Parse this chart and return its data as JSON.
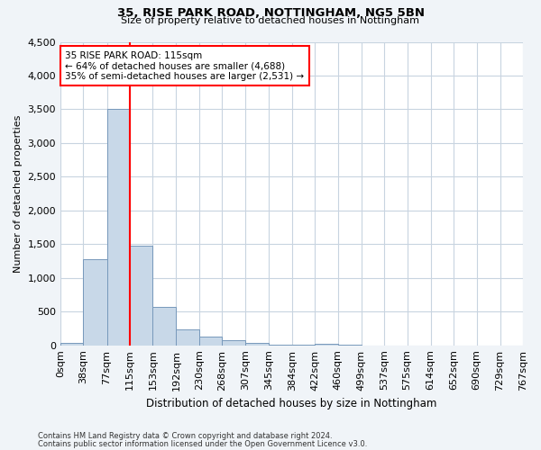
{
  "title": "35, RISE PARK ROAD, NOTTINGHAM, NG5 5BN",
  "subtitle": "Size of property relative to detached houses in Nottingham",
  "xlabel": "Distribution of detached houses by size in Nottingham",
  "ylabel": "Number of detached properties",
  "bin_edges": [
    0,
    38,
    77,
    115,
    153,
    192,
    230,
    268,
    307,
    345,
    384,
    422,
    460,
    499,
    537,
    575,
    614,
    652,
    690,
    729,
    767
  ],
  "bar_heights": [
    30,
    1275,
    3500,
    1475,
    575,
    240,
    130,
    75,
    30,
    10,
    5,
    25,
    5,
    0,
    0,
    0,
    0,
    0,
    0,
    0
  ],
  "bar_color": "#c8d8e8",
  "bar_edge_color": "#7799bb",
  "vline_x": 115,
  "vline_color": "red",
  "annotation_title": "35 RISE PARK ROAD: 115sqm",
  "annotation_line1": "← 64% of detached houses are smaller (4,688)",
  "annotation_line2": "35% of semi-detached houses are larger (2,531) →",
  "annotation_box_color": "#ffffff",
  "annotation_box_edge": "red",
  "ylim": [
    0,
    4500
  ],
  "yticks": [
    0,
    500,
    1000,
    1500,
    2000,
    2500,
    3000,
    3500,
    4000,
    4500
  ],
  "footnote1": "Contains HM Land Registry data © Crown copyright and database right 2024.",
  "footnote2": "Contains public sector information licensed under the Open Government Licence v3.0.",
  "bg_color": "#f0f4f8",
  "plot_bg_color": "#ffffff",
  "grid_color": "#c8d4e0"
}
